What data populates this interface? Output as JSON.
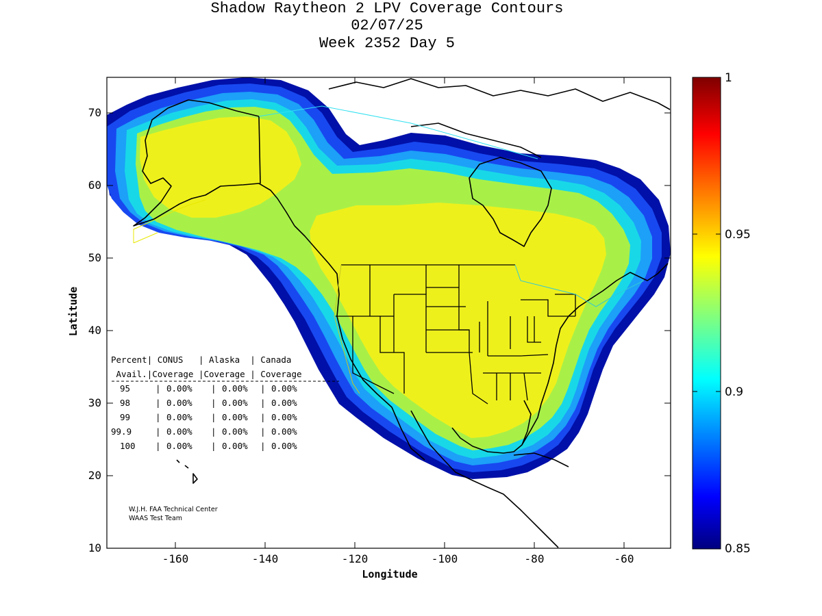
{
  "title": {
    "line1": "Shadow Raytheon 2 LPV Coverage Contours",
    "line2": "02/07/25",
    "line3": "Week 2352 Day 5"
  },
  "chart_data": {
    "type": "heatmap",
    "title": "Shadow Raytheon 2 LPV Coverage Contours",
    "xlabel": "Longitude",
    "ylabel": "Latitude",
    "xlim": [
      -175,
      -50
    ],
    "ylim": [
      10,
      75
    ],
    "xticks": [
      -160,
      -140,
      -120,
      -100,
      -80,
      -60
    ],
    "yticks": [
      10,
      20,
      30,
      40,
      50,
      60,
      70
    ],
    "colorbar": {
      "range": [
        0.85,
        1
      ],
      "ticks": [
        0.85,
        0.9,
        0.95,
        1
      ],
      "tick_labels": [
        "0.85",
        "0.9",
        "0.95",
        "1"
      ],
      "colormap": "jet"
    },
    "table": {
      "header_line1": [
        "Percent",
        "CONUS",
        "Alaska",
        "Canada"
      ],
      "header_line2": [
        "Avail.",
        "Coverage",
        "Coverage",
        "Coverage"
      ],
      "rows": [
        [
          "95",
          "0.00%",
          "0.00%",
          "0.00%"
        ],
        [
          "98",
          "0.00%",
          "0.00%",
          "0.00%"
        ],
        [
          "99",
          "0.00%",
          "0.00%",
          "0.00%"
        ],
        [
          "99.9",
          "0.00%",
          "0.00%",
          "0.00%"
        ],
        [
          "100",
          "0.00%",
          "0.00%",
          "0.00%"
        ]
      ]
    },
    "credit": [
      "W.J.H. FAA Technical Center",
      "WAAS Test Team"
    ]
  },
  "colors": {
    "coverage_high": "#f0f01a",
    "coverage_mid": "#a8f040",
    "coverage_cyan": "#18d8e8",
    "coverage_edge": "#0010b0"
  }
}
